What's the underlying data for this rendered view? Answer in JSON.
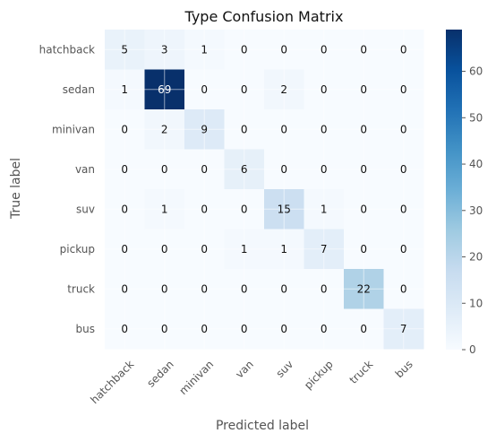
{
  "chart_data": {
    "type": "heatmap",
    "title": "Type Confusion Matrix",
    "xlabel": "Predicted label",
    "ylabel": "True label",
    "x_categories": [
      "hatchback",
      "sedan",
      "minivan",
      "van",
      "suv",
      "pickup",
      "truck",
      "bus"
    ],
    "y_categories": [
      "hatchback",
      "sedan",
      "minivan",
      "van",
      "suv",
      "pickup",
      "truck",
      "bus"
    ],
    "values": [
      [
        5,
        3,
        1,
        0,
        0,
        0,
        0,
        0
      ],
      [
        1,
        69,
        0,
        0,
        2,
        0,
        0,
        0
      ],
      [
        0,
        2,
        9,
        0,
        0,
        0,
        0,
        0
      ],
      [
        0,
        0,
        0,
        6,
        0,
        0,
        0,
        0
      ],
      [
        0,
        1,
        0,
        0,
        15,
        1,
        0,
        0
      ],
      [
        0,
        0,
        0,
        1,
        1,
        7,
        0,
        0
      ],
      [
        0,
        0,
        0,
        0,
        0,
        0,
        22,
        0
      ],
      [
        0,
        0,
        0,
        0,
        0,
        0,
        0,
        7
      ]
    ],
    "colormap": "Blues",
    "color_range": [
      0,
      69
    ],
    "colorbar_ticks": [
      0,
      10,
      20,
      30,
      40,
      50,
      60
    ],
    "grid": true
  }
}
